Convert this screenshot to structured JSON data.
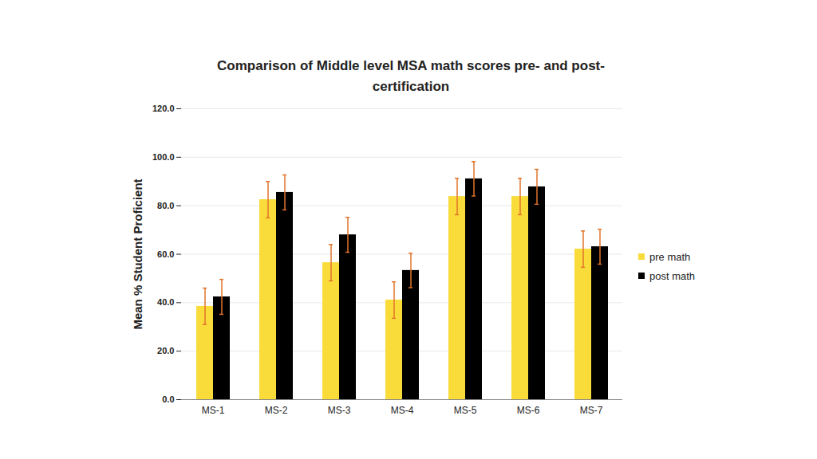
{
  "chart_data": {
    "type": "bar",
    "title": "Comparison of Middle level MSA math scores pre- and post-certification",
    "y_label": "Mean % Student Proficient",
    "categories": [
      "MS-1",
      "MS-2",
      "MS-3",
      "MS-4",
      "MS-5",
      "MS-6",
      "MS-7"
    ],
    "series": [
      {
        "name": "pre math",
        "color": "#F9DB3A",
        "values": [
          38.5,
          82.5,
          56.5,
          41.1,
          83.8,
          83.8,
          62.1
        ],
        "errors": [
          7.5,
          7.5,
          7.5,
          7.5,
          7.5,
          7.5,
          7.5
        ]
      },
      {
        "name": "post math",
        "color": "#000000",
        "values": [
          42.4,
          85.5,
          68.0,
          53.3,
          91.1,
          87.8,
          63.1
        ],
        "errors": [
          7.2,
          7.2,
          7.2,
          7.1,
          7.1,
          7.2,
          7.2
        ]
      }
    ],
    "ylim": [
      0,
      120
    ],
    "yticks": [
      {
        "value": 0,
        "label": "0.0"
      },
      {
        "value": 20,
        "label": "20.0"
      },
      {
        "value": 40,
        "label": "40.0"
      },
      {
        "value": 60,
        "label": "60.0"
      },
      {
        "value": 80,
        "label": "80.0"
      },
      {
        "value": 100,
        "label": "100.0"
      },
      {
        "value": 120,
        "label": "120.0"
      }
    ],
    "grid": true,
    "legend": "right"
  }
}
